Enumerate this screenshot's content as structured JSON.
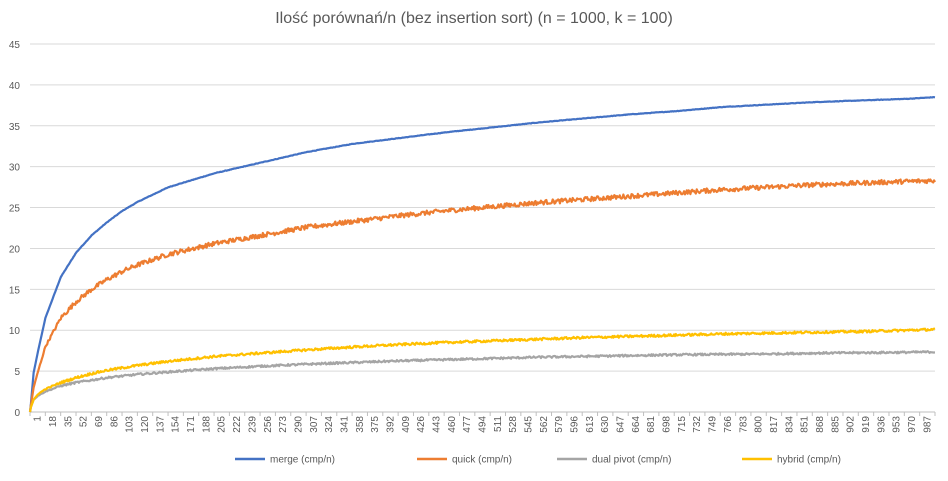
{
  "chart_data": {
    "type": "line",
    "title": "Ilość porównań/n (bez insertion sort) (n = 1000, k = 100)",
    "xlabel": "",
    "ylabel": "",
    "x_range": [
      1,
      1000
    ],
    "ylim": [
      0,
      45
    ],
    "y_ticks": [
      0,
      5,
      10,
      15,
      20,
      25,
      30,
      35,
      40,
      45
    ],
    "x_tick_labels": [
      "1",
      "18",
      "35",
      "52",
      "69",
      "86",
      "103",
      "120",
      "137",
      "154",
      "171",
      "188",
      "205",
      "222",
      "239",
      "256",
      "273",
      "290",
      "307",
      "324",
      "341",
      "358",
      "375",
      "392",
      "409",
      "426",
      "443",
      "460",
      "477",
      "494",
      "511",
      "528",
      "545",
      "562",
      "579",
      "596",
      "613",
      "630",
      "647",
      "664",
      "681",
      "698",
      "715",
      "732",
      "749",
      "766",
      "783",
      "800",
      "817",
      "834",
      "851",
      "868",
      "885",
      "902",
      "919",
      "936",
      "953",
      "970",
      "987"
    ],
    "grid": true,
    "legend_position": "bottom",
    "series": [
      {
        "name": "merge (cmp/n)",
        "color": "#4472C4",
        "noise": 0.03,
        "points": [
          [
            1,
            0
          ],
          [
            2,
            1
          ],
          [
            5,
            4.8
          ],
          [
            10,
            7.5
          ],
          [
            18,
            11.5
          ],
          [
            35,
            16.5
          ],
          [
            52,
            19.5
          ],
          [
            69,
            21.6
          ],
          [
            86,
            23.2
          ],
          [
            103,
            24.6
          ],
          [
            120,
            25.7
          ],
          [
            154,
            27.5
          ],
          [
            205,
            29.2
          ],
          [
            256,
            30.5
          ],
          [
            307,
            31.8
          ],
          [
            358,
            32.8
          ],
          [
            409,
            33.5
          ],
          [
            460,
            34.2
          ],
          [
            511,
            34.8
          ],
          [
            562,
            35.4
          ],
          [
            613,
            35.9
          ],
          [
            664,
            36.4
          ],
          [
            715,
            36.8
          ],
          [
            766,
            37.3
          ],
          [
            817,
            37.6
          ],
          [
            868,
            37.9
          ],
          [
            919,
            38.1
          ],
          [
            970,
            38.3
          ],
          [
            1000,
            38.5
          ]
        ]
      },
      {
        "name": "quick (cmp/n)",
        "color": "#ED7D31",
        "noise": 0.28,
        "points": [
          [
            1,
            0
          ],
          [
            2,
            0.8
          ],
          [
            5,
            3
          ],
          [
            10,
            5
          ],
          [
            18,
            8
          ],
          [
            35,
            11.5
          ],
          [
            52,
            13.5
          ],
          [
            69,
            15
          ],
          [
            86,
            16.2
          ],
          [
            103,
            17.2
          ],
          [
            120,
            18
          ],
          [
            154,
            19.3
          ],
          [
            205,
            20.6
          ],
          [
            256,
            21.6
          ],
          [
            307,
            22.6
          ],
          [
            358,
            23.3
          ],
          [
            409,
            24
          ],
          [
            460,
            24.6
          ],
          [
            511,
            25.1
          ],
          [
            562,
            25.6
          ],
          [
            613,
            26
          ],
          [
            664,
            26.4
          ],
          [
            715,
            26.8
          ],
          [
            766,
            27.2
          ],
          [
            817,
            27.5
          ],
          [
            868,
            27.8
          ],
          [
            919,
            28
          ],
          [
            970,
            28.2
          ],
          [
            1000,
            28.3
          ]
        ]
      },
      {
        "name": "dual pivot (cmp/n)",
        "color": "#A5A5A5",
        "noise": 0.12,
        "points": [
          [
            1,
            0
          ],
          [
            2,
            0.6
          ],
          [
            5,
            1.5
          ],
          [
            10,
            2
          ],
          [
            18,
            2.5
          ],
          [
            35,
            3.2
          ],
          [
            52,
            3.6
          ],
          [
            69,
            3.9
          ],
          [
            86,
            4.2
          ],
          [
            103,
            4.4
          ],
          [
            120,
            4.6
          ],
          [
            154,
            4.9
          ],
          [
            205,
            5.3
          ],
          [
            256,
            5.6
          ],
          [
            307,
            5.85
          ],
          [
            358,
            6.05
          ],
          [
            409,
            6.25
          ],
          [
            460,
            6.4
          ],
          [
            511,
            6.55
          ],
          [
            562,
            6.7
          ],
          [
            613,
            6.8
          ],
          [
            664,
            6.9
          ],
          [
            715,
            7
          ],
          [
            766,
            7.05
          ],
          [
            817,
            7.1
          ],
          [
            868,
            7.2
          ],
          [
            919,
            7.25
          ],
          [
            970,
            7.3
          ],
          [
            1000,
            7.35
          ]
        ]
      },
      {
        "name": "hybrid (cmp/n)",
        "color": "#FFC000",
        "noise": 0.14,
        "points": [
          [
            1,
            0
          ],
          [
            2,
            0.6
          ],
          [
            5,
            1.5
          ],
          [
            10,
            2.2
          ],
          [
            18,
            2.8
          ],
          [
            35,
            3.6
          ],
          [
            52,
            4.2
          ],
          [
            69,
            4.7
          ],
          [
            86,
            5.1
          ],
          [
            103,
            5.4
          ],
          [
            120,
            5.7
          ],
          [
            154,
            6.2
          ],
          [
            205,
            6.8
          ],
          [
            256,
            7.2
          ],
          [
            307,
            7.6
          ],
          [
            358,
            7.95
          ],
          [
            409,
            8.25
          ],
          [
            460,
            8.5
          ],
          [
            511,
            8.7
          ],
          [
            562,
            8.9
          ],
          [
            613,
            9.1
          ],
          [
            664,
            9.25
          ],
          [
            715,
            9.4
          ],
          [
            766,
            9.55
          ],
          [
            817,
            9.65
          ],
          [
            868,
            9.75
          ],
          [
            919,
            9.85
          ],
          [
            970,
            10
          ],
          [
            1000,
            10.1
          ]
        ]
      }
    ]
  }
}
